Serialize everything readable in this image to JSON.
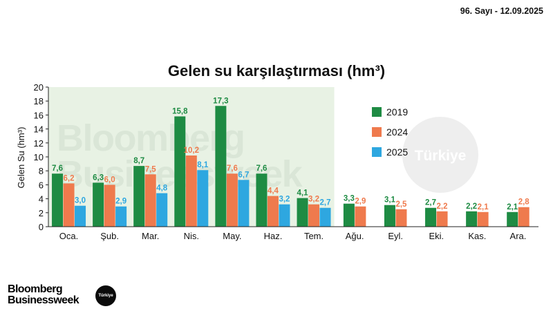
{
  "issue": "96. Sayı - 12.09.2025",
  "title": "Gelen su karşılaştırması (hm³)",
  "watermark": {
    "line1": "Bloomberg",
    "line2": "Businessweek",
    "badge": "Türkiye"
  },
  "logo": {
    "line1": "Bloomberg",
    "line2": "Businessweek",
    "badge": "Türkiye"
  },
  "colors": {
    "2019": "#1e8b43",
    "2024": "#ef7a4d",
    "2025": "#2ea7e0",
    "highlight": "#e8f2e4"
  },
  "chart_data": {
    "type": "bar",
    "title": "Gelen su karşılaştırması (hm³)",
    "xlabel": "",
    "ylabel": "Gelen Su (hm³)",
    "ylim": [
      0,
      20
    ],
    "yticks": [
      0,
      2,
      4,
      6,
      8,
      10,
      12,
      14,
      16,
      18,
      20
    ],
    "categories": [
      "Oca.",
      "Şub.",
      "Mar.",
      "Nis.",
      "May.",
      "Haz.",
      "Tem.",
      "Ağu.",
      "Eyl.",
      "Eki.",
      "Kas.",
      "Ara."
    ],
    "highlight_through": "Tem.",
    "legend_position": "right",
    "series": [
      {
        "name": "2019",
        "values": [
          7.6,
          6.3,
          8.7,
          15.8,
          17.3,
          7.6,
          4.1,
          3.3,
          3.1,
          2.7,
          2.2,
          2.1
        ]
      },
      {
        "name": "2024",
        "values": [
          6.2,
          6.0,
          7.5,
          10.2,
          7.6,
          4.4,
          3.2,
          2.9,
          2.5,
          2.2,
          2.1,
          2.8
        ]
      },
      {
        "name": "2025",
        "values": [
          3.0,
          2.9,
          4.8,
          8.1,
          6.7,
          3.2,
          2.7,
          null,
          null,
          null,
          null,
          null
        ]
      }
    ]
  }
}
